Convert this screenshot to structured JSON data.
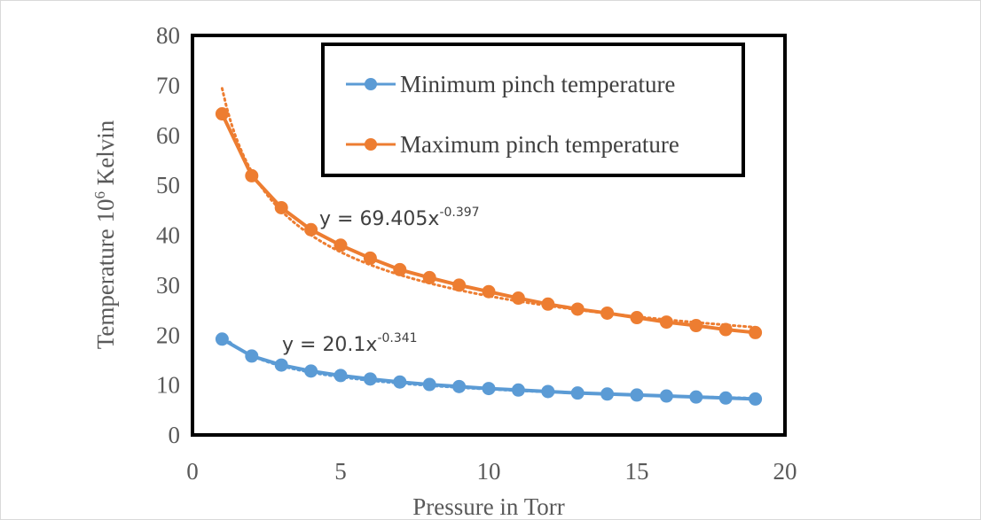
{
  "chart_data": {
    "type": "line",
    "title": "",
    "xlabel": "Pressure in Torr",
    "ylabel_main": "Temperature 10",
    "ylabel_sup": "6",
    "ylabel_tail": " Kelvin",
    "xlim": [
      0,
      20
    ],
    "ylim": [
      0,
      80
    ],
    "xticks": [
      "0",
      "5",
      "10",
      "15",
      "20"
    ],
    "yticks": [
      "0",
      "10",
      "20",
      "30",
      "40",
      "50",
      "60",
      "70",
      "80"
    ],
    "grid": false,
    "legend_position": "top-right",
    "x": [
      1,
      2,
      3,
      4,
      5,
      6,
      7,
      8,
      9,
      10,
      11,
      12,
      13,
      14,
      15,
      16,
      17,
      18,
      19
    ],
    "series": [
      {
        "name": "Minimum pinch temperature",
        "color": "#5b9bd5",
        "values": [
          19.2,
          15.8,
          14.0,
          12.8,
          11.9,
          11.2,
          10.6,
          10.1,
          9.7,
          9.3,
          9.0,
          8.7,
          8.4,
          8.2,
          8.0,
          7.8,
          7.6,
          7.4,
          7.2
        ],
        "trendline": {
          "a": 20.1,
          "b": -0.341,
          "label_prefix": "y = 20.1x",
          "label_exp": "-0.341"
        }
      },
      {
        "name": "Maximum pinch temperature",
        "color": "#ed7d31",
        "values": [
          64.3,
          51.9,
          45.5,
          41.1,
          38.0,
          35.4,
          33.1,
          31.5,
          30.0,
          28.7,
          27.4,
          26.2,
          25.2,
          24.4,
          23.5,
          22.6,
          21.9,
          21.1,
          20.5
        ],
        "trendline": {
          "a": 69.405,
          "b": -0.397,
          "label_prefix": "y = 69.405x",
          "label_exp": "-0.397"
        }
      }
    ]
  }
}
